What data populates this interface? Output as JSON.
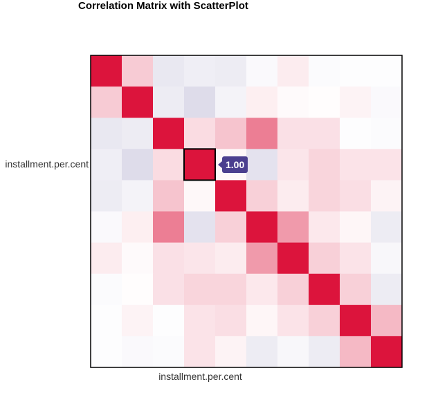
{
  "chart_data": {
    "type": "heatmap",
    "title": "Correlation Matrix with ScatterPlot",
    "xlabel": "installment.per.cent",
    "ylabel": "installment.per.cent",
    "zlim": [
      -1,
      1
    ],
    "colors": {
      "positive": "#dc143c",
      "negative": "#483d8b",
      "zero": "#ffffff"
    },
    "tooltip": {
      "value_label": "1.00",
      "row": 3,
      "col": 3
    },
    "matrix": [
      [
        1.0,
        0.22,
        -0.12,
        -0.09,
        -0.1,
        -0.03,
        0.08,
        -0.02,
        -0.01,
        -0.01
      ],
      [
        0.22,
        1.0,
        -0.1,
        -0.18,
        -0.06,
        0.07,
        0.02,
        0.01,
        0.05,
        -0.03
      ],
      [
        -0.12,
        -0.1,
        1.0,
        0.15,
        0.25,
        0.55,
        0.13,
        0.13,
        -0.01,
        -0.02
      ],
      [
        -0.09,
        -0.18,
        0.15,
        1.0,
        0.03,
        -0.15,
        0.11,
        0.18,
        0.12,
        0.12
      ],
      [
        -0.1,
        -0.06,
        0.25,
        0.03,
        1.0,
        0.2,
        0.08,
        0.18,
        0.14,
        0.05
      ],
      [
        -0.03,
        0.07,
        0.55,
        -0.15,
        0.2,
        1.0,
        0.43,
        0.1,
        0.04,
        -0.1
      ],
      [
        0.08,
        0.02,
        0.13,
        0.11,
        0.08,
        0.43,
        1.0,
        0.2,
        0.12,
        -0.04
      ],
      [
        -0.02,
        0.01,
        0.13,
        0.18,
        0.18,
        0.1,
        0.2,
        1.0,
        0.2,
        -0.1
      ],
      [
        -0.01,
        0.05,
        -0.01,
        0.12,
        0.14,
        0.04,
        0.12,
        0.2,
        1.0,
        0.3
      ],
      [
        -0.01,
        -0.03,
        -0.02,
        0.12,
        0.05,
        -0.1,
        -0.04,
        -0.1,
        0.3,
        1.0
      ]
    ]
  }
}
